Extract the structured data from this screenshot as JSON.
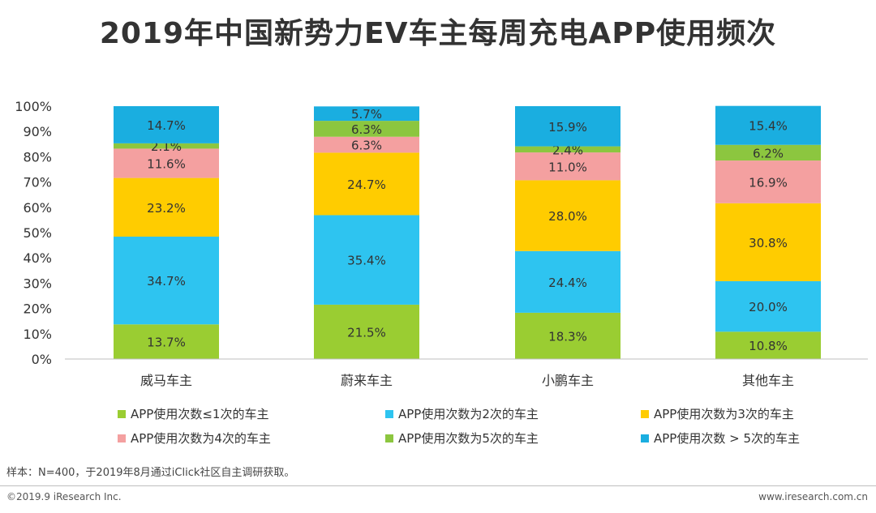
{
  "chart_data": {
    "type": "bar",
    "stacked": true,
    "title": "2019年中国新势力EV车主每周充电APP使用频次",
    "categories": [
      "威马车主",
      "蔚来车主",
      "小鹏车主",
      "其他车主"
    ],
    "ylim": [
      0,
      100
    ],
    "yticks": [
      "0%",
      "10%",
      "20%",
      "30%",
      "40%",
      "50%",
      "60%",
      "70%",
      "80%",
      "90%",
      "100%"
    ],
    "series": [
      {
        "name": "APP使用次数≤1次的车主",
        "color": "#9acd32",
        "values": [
          13.7,
          21.5,
          18.3,
          10.8
        ],
        "labels": [
          "13.7%",
          "21.5%",
          "18.3%",
          "10.8%"
        ]
      },
      {
        "name": "APP使用次数为2次的车主",
        "color": "#2ec4f0",
        "values": [
          34.7,
          35.4,
          24.4,
          20.0
        ],
        "labels": [
          "34.7%",
          "35.4%",
          "24.4%",
          "20.0%"
        ]
      },
      {
        "name": "APP使用次数为3次的车主",
        "color": "#ffcc00",
        "values": [
          23.2,
          24.7,
          28.0,
          30.8
        ],
        "labels": [
          "23.2%",
          "24.7%",
          "28.0%",
          "30.8%"
        ]
      },
      {
        "name": "APP使用次数为4次的车主",
        "color": "#f4a0a0",
        "values": [
          11.6,
          6.3,
          11.0,
          16.9
        ],
        "labels": [
          "11.6%",
          "6.3%",
          "11.0%",
          "16.9%"
        ]
      },
      {
        "name": "APP使用次数为5次的车主",
        "color": "#8cc63f",
        "values": [
          2.1,
          6.3,
          2.4,
          6.2
        ],
        "labels": [
          "2.1%",
          "6.3%",
          "2.4%",
          "6.2%"
        ]
      },
      {
        "name": "APP使用次数 > 5次的车主",
        "color": "#1aaee0",
        "values": [
          14.7,
          5.7,
          15.9,
          15.4
        ],
        "labels": [
          "14.7%",
          "5.7%",
          "15.9%",
          "15.4%"
        ]
      }
    ],
    "legend_position": "bottom"
  },
  "note": "样本：N=400，于2019年8月通过iClick社区自主调研获取。",
  "footer": {
    "copyright": "©2019.9  iResearch Inc.",
    "website": "www.iresearch.com.cn"
  }
}
